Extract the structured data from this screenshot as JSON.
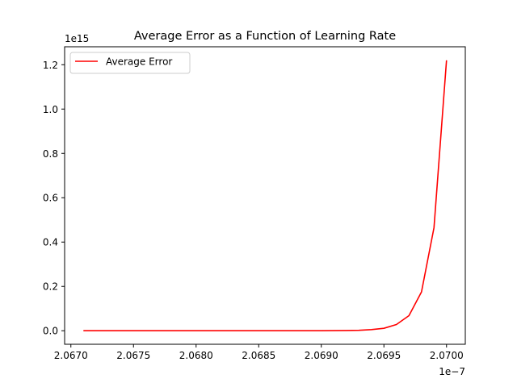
{
  "chart_data": {
    "type": "line",
    "title": "Average Error as a Function of Learning Rate",
    "xlabel": "",
    "ylabel": "",
    "x_offset_label": "1e−7",
    "y_offset_label": "1e15",
    "xlim": [
      2.06695e-07,
      2.07015e-07
    ],
    "ylim": [
      -61000000000000.0,
      1281000000000000.0
    ],
    "x_ticks": [
      2.067e-07,
      2.0675e-07,
      2.068e-07,
      2.0685e-07,
      2.069e-07,
      2.0695e-07,
      2.07e-07
    ],
    "x_tick_labels": [
      "2.0670",
      "2.0675",
      "2.0680",
      "2.0685",
      "2.0690",
      "2.0695",
      "2.0700"
    ],
    "y_ticks": [
      0,
      200000000000000.0,
      400000000000000.0,
      600000000000000.0,
      800000000000000.0,
      1000000000000000.0,
      1200000000000000.0
    ],
    "y_tick_labels": [
      "0.0",
      "0.2",
      "0.4",
      "0.6",
      "0.8",
      "1.0",
      "1.2"
    ],
    "grid": false,
    "legend_position": "top-left",
    "series": [
      {
        "name": "Average Error",
        "color": "#ff0000",
        "x": [
          2.0671e-07,
          2.0672e-07,
          2.0673e-07,
          2.0674e-07,
          2.0675e-07,
          2.0676e-07,
          2.0677e-07,
          2.0678e-07,
          2.0679e-07,
          2.068e-07,
          2.0681e-07,
          2.0682e-07,
          2.0683e-07,
          2.0684e-07,
          2.0685e-07,
          2.0686e-07,
          2.0687e-07,
          2.0688e-07,
          2.0689e-07,
          2.069e-07,
          2.0691e-07,
          2.0692e-07,
          2.0693e-07,
          2.0694e-07,
          2.0695e-07,
          2.0696e-07,
          2.0697e-07,
          2.0698e-07,
          2.0699e-07,
          2.07e-07
        ],
        "y": [
          0,
          0,
          0,
          0,
          0,
          0,
          0,
          0,
          0,
          0,
          0,
          0,
          0,
          0,
          0,
          0,
          0,
          0,
          0,
          200000000000.0,
          500000000000.0,
          1000000000000.0,
          2000000000000.0,
          5000000000000.0,
          11000000000000.0,
          28000000000000.0,
          68000000000000.0,
          175000000000000.0,
          465000000000000.0,
          1220000000000000.0
        ]
      }
    ]
  }
}
